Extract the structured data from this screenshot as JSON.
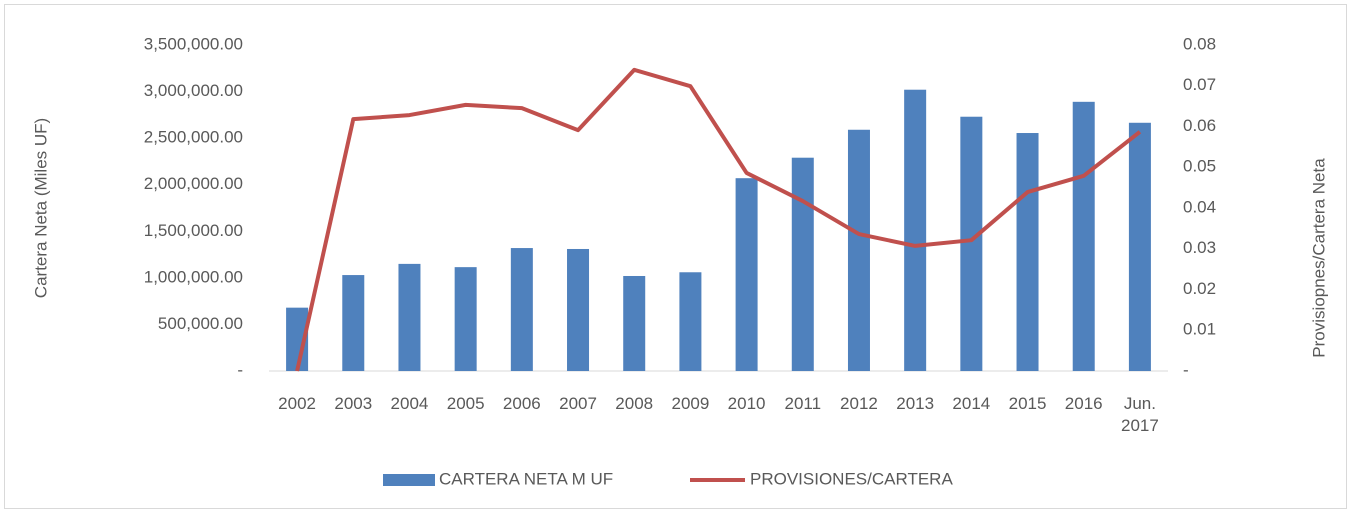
{
  "chart_data": {
    "type": "bar_line",
    "y_label": "Cartera Neta  (Miles UF)",
    "y2_label": "Provisiopnes/Cartera Neta",
    "categories": [
      "2002",
      "2003",
      "2004",
      "2005",
      "2006",
      "2007",
      "2008",
      "2009",
      "2010",
      "2011",
      "2012",
      "2013",
      "2014",
      "2015",
      "2016",
      "Jun. 2017"
    ],
    "series": [
      {
        "name": "CARTERA NETA M UF",
        "type": "bar",
        "color": "#4f81bd",
        "axis": "y",
        "values": [
          680000,
          1030000,
          1150000,
          1115000,
          1320000,
          1310000,
          1020000,
          1060000,
          2070000,
          2290000,
          2590000,
          3020000,
          2730000,
          2555000,
          2890000,
          2665000
        ]
      },
      {
        "name": "PROVISIONES/CARTERA",
        "type": "line",
        "color": "#c0504d",
        "axis": "y2",
        "values": [
          0,
          0.0618,
          0.0628,
          0.0653,
          0.0645,
          0.0591,
          0.0739,
          0.0699,
          0.0486,
          0.0417,
          0.0336,
          0.0307,
          0.0321,
          0.0439,
          0.0479,
          0.0587
        ]
      }
    ],
    "ylim": [
      0,
      3500000
    ],
    "yticks": [
      {
        "value": 0,
        "label": "-"
      },
      {
        "value": 500000,
        "label": "500,000.00"
      },
      {
        "value": 1000000,
        "label": "1,000,000.00"
      },
      {
        "value": 1500000,
        "label": "1,500,000.00"
      },
      {
        "value": 2000000,
        "label": "2,000,000.00"
      },
      {
        "value": 2500000,
        "label": "2,500,000.00"
      },
      {
        "value": 3000000,
        "label": "3,000,000.00"
      },
      {
        "value": 3500000,
        "label": "3,500,000.00"
      }
    ],
    "y2lim": [
      0,
      0.08
    ],
    "y2ticks": [
      {
        "value": 0,
        "label": "-"
      },
      0.01,
      0.02,
      0.03,
      0.04,
      0.05,
      0.06,
      0.07,
      0.08
    ],
    "grid": false,
    "legend": "bottom"
  }
}
